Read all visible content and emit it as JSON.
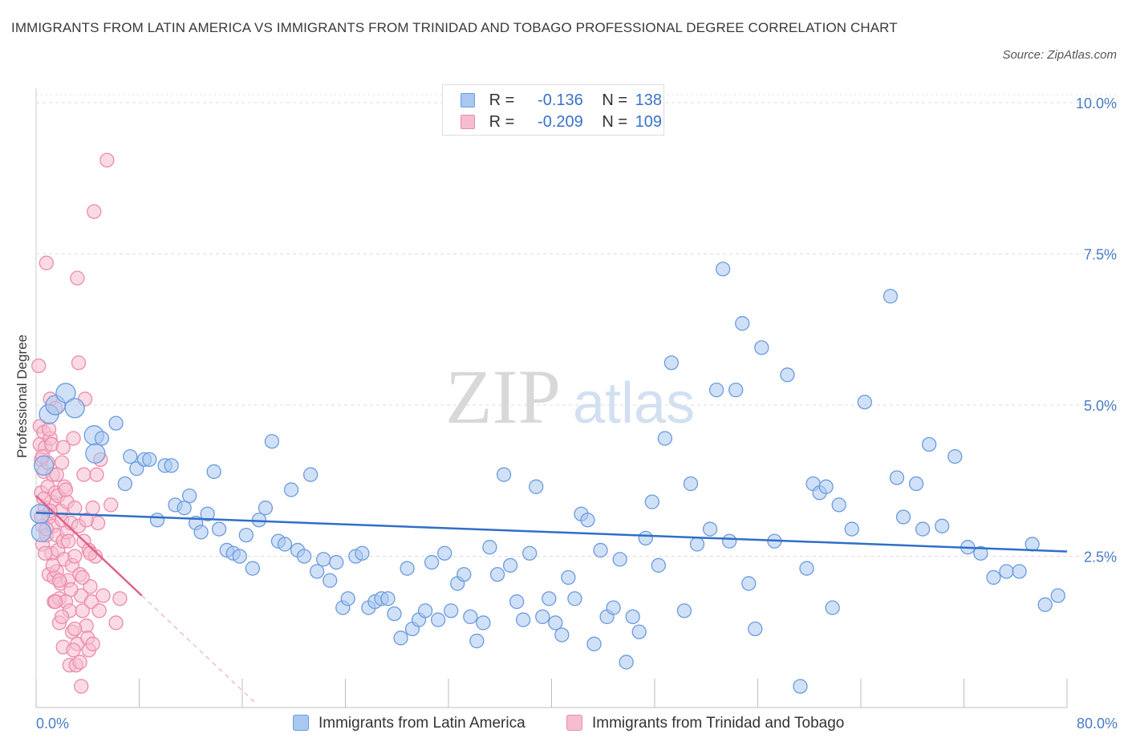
{
  "title": "IMMIGRANTS FROM LATIN AMERICA VS IMMIGRANTS FROM TRINIDAD AND TOBAGO PROFESSIONAL DEGREE CORRELATION CHART",
  "source": "Source: ZipAtlas.com",
  "watermark": {
    "zip": "ZIP",
    "atlas": "atlas"
  },
  "legend": {
    "r_label": "R =",
    "n_label": "N =",
    "rows": [
      {
        "r": "-0.136",
        "n": "138"
      },
      {
        "r": "-0.209",
        "n": "109"
      }
    ]
  },
  "colors": {
    "blue_fill": "#a9c8f0",
    "blue_stroke": "#6a9be0",
    "blue_line": "#2f6fc8",
    "pink_fill": "#f6bdd0",
    "pink_stroke": "#ec8aaa",
    "pink_line": "#e0608a",
    "grid": "#dcdcdc",
    "tick_text": "#4a7cc4"
  },
  "chart_data": {
    "type": "scatter",
    "title": "IMMIGRANTS FROM LATIN AMERICA VS IMMIGRANTS FROM TRINIDAD AND TOBAGO PROFESSIONAL DEGREE CORRELATION CHART",
    "xlabel": "",
    "ylabel": "Professional Degree",
    "xlim": [
      0,
      80
    ],
    "ylim": [
      0,
      10
    ],
    "x_tick_labels": [
      "0.0%",
      "80.0%"
    ],
    "y_ticks": [
      2.5,
      5.0,
      7.5,
      10.0
    ],
    "y_tick_labels": [
      "2.5%",
      "5.0%",
      "7.5%",
      "10.0%"
    ],
    "grid": true,
    "legend_position": "top-center",
    "series": [
      {
        "name": "Immigrants from Latin America",
        "r": -0.136,
        "n": 138,
        "trend": {
          "x0": 0,
          "y0": 3.22,
          "x1": 80,
          "y1": 2.58,
          "dashed_to": 80
        },
        "points": [
          [
            0.3,
            3.2
          ],
          [
            0.4,
            2.9
          ],
          [
            0.6,
            4.0
          ],
          [
            1.0,
            4.85
          ],
          [
            1.5,
            5.0
          ],
          [
            2.3,
            5.2
          ],
          [
            3.0,
            4.95
          ],
          [
            4.5,
            4.5
          ],
          [
            4.6,
            4.2
          ],
          [
            5.1,
            4.45
          ],
          [
            6.2,
            4.7
          ],
          [
            6.9,
            3.7
          ],
          [
            7.3,
            4.15
          ],
          [
            7.8,
            3.95
          ],
          [
            8.4,
            4.1
          ],
          [
            8.8,
            4.1
          ],
          [
            9.4,
            3.1
          ],
          [
            10.0,
            4.0
          ],
          [
            10.5,
            4.0
          ],
          [
            10.8,
            3.35
          ],
          [
            11.5,
            3.3
          ],
          [
            11.9,
            3.5
          ],
          [
            12.4,
            3.05
          ],
          [
            12.8,
            2.9
          ],
          [
            13.3,
            3.2
          ],
          [
            13.8,
            3.9
          ],
          [
            14.2,
            2.95
          ],
          [
            14.8,
            2.6
          ],
          [
            15.3,
            2.55
          ],
          [
            15.8,
            2.5
          ],
          [
            16.3,
            2.85
          ],
          [
            16.8,
            2.3
          ],
          [
            17.3,
            3.1
          ],
          [
            17.8,
            3.3
          ],
          [
            18.3,
            4.4
          ],
          [
            18.8,
            2.75
          ],
          [
            19.3,
            2.7
          ],
          [
            19.8,
            3.6
          ],
          [
            20.3,
            2.6
          ],
          [
            20.8,
            2.5
          ],
          [
            21.3,
            3.85
          ],
          [
            21.8,
            2.25
          ],
          [
            22.3,
            2.45
          ],
          [
            22.8,
            2.1
          ],
          [
            23.3,
            2.4
          ],
          [
            23.8,
            1.65
          ],
          [
            24.2,
            1.8
          ],
          [
            24.8,
            2.5
          ],
          [
            25.3,
            2.55
          ],
          [
            25.8,
            1.65
          ],
          [
            26.3,
            1.75
          ],
          [
            26.8,
            1.8
          ],
          [
            27.3,
            1.8
          ],
          [
            27.8,
            1.55
          ],
          [
            28.3,
            1.15
          ],
          [
            28.8,
            2.3
          ],
          [
            29.2,
            1.3
          ],
          [
            29.7,
            1.45
          ],
          [
            30.2,
            1.6
          ],
          [
            30.7,
            2.4
          ],
          [
            31.2,
            1.45
          ],
          [
            31.7,
            2.55
          ],
          [
            32.2,
            1.6
          ],
          [
            32.7,
            2.05
          ],
          [
            33.2,
            2.2
          ],
          [
            33.7,
            1.5
          ],
          [
            34.2,
            1.1
          ],
          [
            34.7,
            1.4
          ],
          [
            35.2,
            2.65
          ],
          [
            35.8,
            2.2
          ],
          [
            36.3,
            3.85
          ],
          [
            36.8,
            2.35
          ],
          [
            37.3,
            1.75
          ],
          [
            37.8,
            1.45
          ],
          [
            38.3,
            2.55
          ],
          [
            38.8,
            3.65
          ],
          [
            39.3,
            1.5
          ],
          [
            39.8,
            1.8
          ],
          [
            40.3,
            1.4
          ],
          [
            40.8,
            1.2
          ],
          [
            41.3,
            2.15
          ],
          [
            41.8,
            1.8
          ],
          [
            42.3,
            3.2
          ],
          [
            42.8,
            3.1
          ],
          [
            43.3,
            1.05
          ],
          [
            43.8,
            2.6
          ],
          [
            44.3,
            1.5
          ],
          [
            44.8,
            1.65
          ],
          [
            45.3,
            2.45
          ],
          [
            45.8,
            0.75
          ],
          [
            46.3,
            1.5
          ],
          [
            46.8,
            1.25
          ],
          [
            47.3,
            2.8
          ],
          [
            47.8,
            3.4
          ],
          [
            48.3,
            2.35
          ],
          [
            48.8,
            4.45
          ],
          [
            49.3,
            5.7
          ],
          [
            50.3,
            1.6
          ],
          [
            50.8,
            3.7
          ],
          [
            51.3,
            2.7
          ],
          [
            52.3,
            2.95
          ],
          [
            52.8,
            5.25
          ],
          [
            53.3,
            7.25
          ],
          [
            53.8,
            2.75
          ],
          [
            54.3,
            5.25
          ],
          [
            54.8,
            6.35
          ],
          [
            55.3,
            2.05
          ],
          [
            55.8,
            1.3
          ],
          [
            56.3,
            5.95
          ],
          [
            57.3,
            2.75
          ],
          [
            58.3,
            5.5
          ],
          [
            59.3,
            0.35
          ],
          [
            59.8,
            2.3
          ],
          [
            60.3,
            3.7
          ],
          [
            60.8,
            3.55
          ],
          [
            61.3,
            3.65
          ],
          [
            61.8,
            1.65
          ],
          [
            62.3,
            3.35
          ],
          [
            63.3,
            2.95
          ],
          [
            64.3,
            5.05
          ],
          [
            66.3,
            6.8
          ],
          [
            66.8,
            3.8
          ],
          [
            67.3,
            3.15
          ],
          [
            68.3,
            3.7
          ],
          [
            68.8,
            2.95
          ],
          [
            69.3,
            4.35
          ],
          [
            70.3,
            3.0
          ],
          [
            71.3,
            4.15
          ],
          [
            72.3,
            2.65
          ],
          [
            73.3,
            2.55
          ],
          [
            74.3,
            2.15
          ],
          [
            75.3,
            2.25
          ],
          [
            76.3,
            2.25
          ],
          [
            77.3,
            2.7
          ],
          [
            78.3,
            1.7
          ],
          [
            79.3,
            1.85
          ]
        ]
      },
      {
        "name": "Immigrants from Trinidad and Tobago",
        "r": -0.209,
        "n": 109,
        "trend": {
          "x0": 0,
          "y0": 3.5,
          "x1": 8.2,
          "y1": 1.85,
          "dashed_to": 17.0
        },
        "points": [
          [
            0.2,
            5.65
          ],
          [
            0.3,
            4.65
          ],
          [
            0.3,
            4.35
          ],
          [
            0.4,
            4.1
          ],
          [
            0.4,
            3.55
          ],
          [
            0.5,
            3.0
          ],
          [
            0.5,
            2.7
          ],
          [
            0.6,
            4.55
          ],
          [
            0.6,
            3.9
          ],
          [
            0.7,
            4.3
          ],
          [
            0.7,
            3.3
          ],
          [
            0.8,
            2.85
          ],
          [
            0.8,
            7.35
          ],
          [
            0.9,
            4.05
          ],
          [
            0.9,
            3.65
          ],
          [
            1.0,
            3.15
          ],
          [
            1.0,
            2.2
          ],
          [
            1.1,
            5.1
          ],
          [
            1.1,
            4.45
          ],
          [
            1.2,
            3.4
          ],
          [
            1.2,
            2.55
          ],
          [
            1.3,
            3.85
          ],
          [
            1.3,
            3.0
          ],
          [
            1.4,
            2.15
          ],
          [
            1.4,
            1.75
          ],
          [
            1.5,
            4.95
          ],
          [
            1.5,
            3.55
          ],
          [
            1.6,
            2.85
          ],
          [
            1.6,
            2.25
          ],
          [
            1.7,
            3.5
          ],
          [
            1.7,
            2.6
          ],
          [
            1.8,
            1.8
          ],
          [
            1.8,
            1.4
          ],
          [
            1.9,
            3.25
          ],
          [
            1.9,
            2.05
          ],
          [
            2.0,
            4.05
          ],
          [
            2.0,
            3.1
          ],
          [
            2.1,
            2.75
          ],
          [
            2.1,
            1.0
          ],
          [
            2.2,
            3.65
          ],
          [
            2.2,
            2.45
          ],
          [
            2.3,
            1.75
          ],
          [
            2.4,
            3.4
          ],
          [
            2.4,
            2.9
          ],
          [
            2.5,
            2.1
          ],
          [
            2.6,
            1.6
          ],
          [
            2.6,
            0.7
          ],
          [
            2.7,
            3.05
          ],
          [
            2.8,
            2.35
          ],
          [
            2.8,
            1.25
          ],
          [
            2.9,
            4.45
          ],
          [
            3.0,
            3.3
          ],
          [
            3.0,
            2.5
          ],
          [
            3.1,
            0.7
          ],
          [
            3.2,
            7.1
          ],
          [
            3.2,
            1.05
          ],
          [
            3.3,
            5.7
          ],
          [
            3.3,
            3.0
          ],
          [
            3.4,
            2.2
          ],
          [
            3.5,
            1.85
          ],
          [
            3.5,
            0.35
          ],
          [
            3.6,
            1.6
          ],
          [
            3.7,
            3.85
          ],
          [
            3.7,
            2.75
          ],
          [
            3.8,
            5.1
          ],
          [
            3.9,
            1.35
          ],
          [
            4.0,
            1.15
          ],
          [
            4.1,
            2.6
          ],
          [
            4.1,
            0.95
          ],
          [
            4.2,
            2.0
          ],
          [
            4.3,
            1.75
          ],
          [
            4.4,
            3.3
          ],
          [
            4.5,
            8.2
          ],
          [
            4.6,
            2.5
          ],
          [
            4.7,
            3.85
          ],
          [
            4.8,
            3.05
          ],
          [
            4.9,
            1.6
          ],
          [
            5.0,
            4.1
          ],
          [
            5.2,
            1.85
          ],
          [
            5.5,
            9.05
          ],
          [
            5.8,
            3.35
          ],
          [
            6.2,
            1.4
          ],
          [
            6.5,
            1.8
          ],
          [
            0.5,
            4.15
          ],
          [
            0.6,
            3.45
          ],
          [
            0.8,
            2.95
          ],
          [
            1.0,
            4.6
          ],
          [
            1.1,
            3.25
          ],
          [
            1.3,
            2.35
          ],
          [
            1.6,
            3.85
          ],
          [
            1.8,
            2.1
          ],
          [
            2.0,
            1.5
          ],
          [
            2.3,
            3.6
          ],
          [
            2.5,
            2.75
          ],
          [
            2.7,
            1.95
          ],
          [
            3.0,
            1.3
          ],
          [
            3.4,
            0.75
          ],
          [
            3.6,
            2.15
          ],
          [
            3.9,
            3.1
          ],
          [
            4.2,
            2.55
          ],
          [
            0.4,
            3.15
          ],
          [
            0.7,
            2.55
          ],
          [
            1.5,
            1.75
          ],
          [
            2.9,
            0.95
          ],
          [
            4.4,
            1.05
          ],
          [
            1.2,
            4.35
          ],
          [
            2.1,
            4.3
          ]
        ]
      }
    ]
  },
  "bottom_legend": [
    "Immigrants from Latin America",
    "Immigrants from Trinidad and Tobago"
  ]
}
